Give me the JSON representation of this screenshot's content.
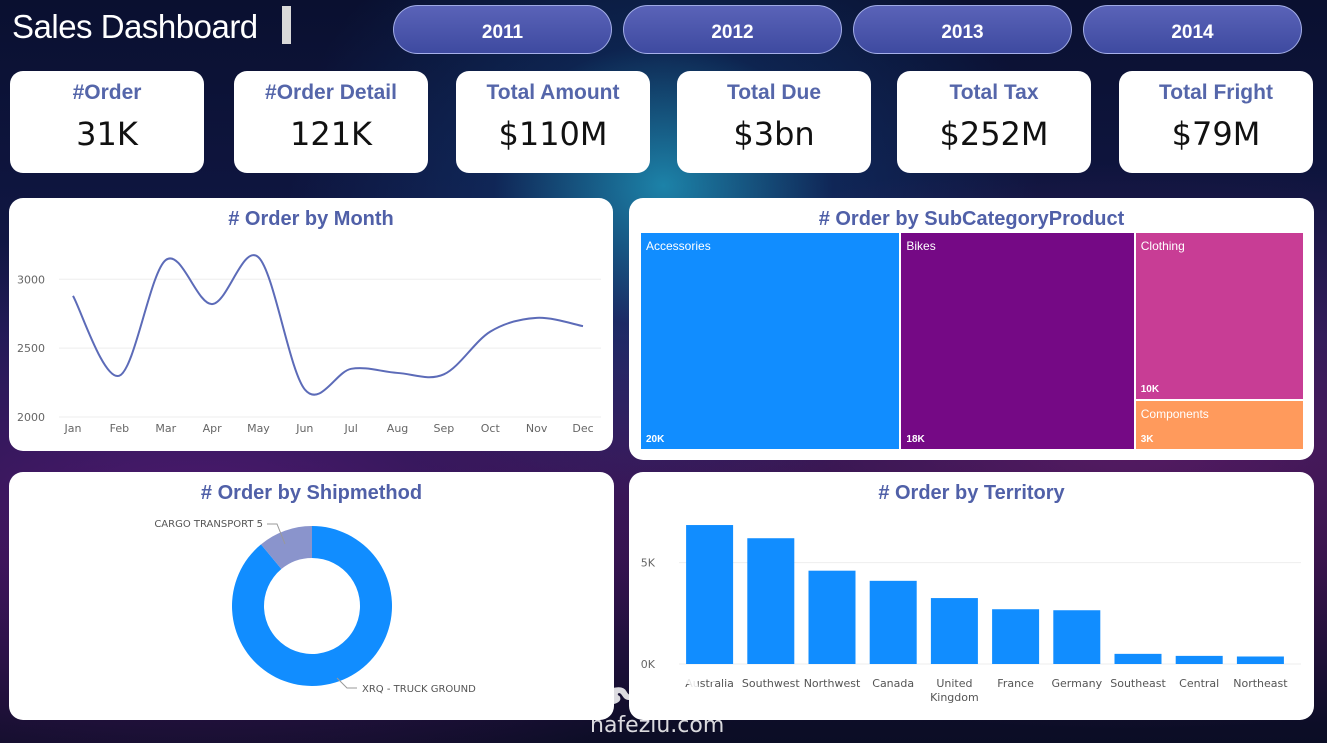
{
  "header": {
    "title": "Sales Dashboard"
  },
  "year_buttons": [
    "2011",
    "2012",
    "2013",
    "2014"
  ],
  "kpis": [
    {
      "label": "#Order",
      "value": "31K"
    },
    {
      "label": "#Order Detail",
      "value": "121K"
    },
    {
      "label": "Total Amount",
      "value": "$110M"
    },
    {
      "label": "Total Due",
      "value": "$3bn"
    },
    {
      "label": "Total Tax",
      "value": "$252M"
    },
    {
      "label": "Total Fright",
      "value": "$79M"
    }
  ],
  "colors": {
    "accent": "#118dff",
    "line": "#5c6bb8",
    "bikes": "#750985",
    "clothing": "#c83d95",
    "components": "#ff9a5c",
    "secondary": "#8a94cc"
  },
  "chart_data": [
    {
      "type": "line",
      "title": "# Order by Month",
      "categories": [
        "Jan",
        "Feb",
        "Mar",
        "Apr",
        "May",
        "Jun",
        "Jul",
        "Aug",
        "Sep",
        "Oct",
        "Nov",
        "Dec"
      ],
      "values": [
        2880,
        2300,
        3140,
        2820,
        3160,
        2200,
        2350,
        2320,
        2310,
        2620,
        2720,
        2660
      ],
      "yticks": [
        "2000",
        "2500",
        "3000"
      ],
      "ylim": [
        2000,
        3300
      ]
    },
    {
      "type": "treemap",
      "title": "# Order by SubCategoryProduct",
      "items": [
        {
          "name": "Accessories",
          "value": 20000,
          "label": "20K"
        },
        {
          "name": "Bikes",
          "value": 18000,
          "label": "18K"
        },
        {
          "name": "Clothing",
          "value": 10000,
          "label": "10K"
        },
        {
          "name": "Components",
          "value": 3000,
          "label": "3K"
        }
      ]
    },
    {
      "type": "pie",
      "title": "# Order by Shipmethod",
      "slices": [
        {
          "name": "XRQ - TRUCK GROUND",
          "value": 89
        },
        {
          "name": "CARGO TRANSPORT 5",
          "value": 11
        }
      ]
    },
    {
      "type": "bar",
      "title": "# Order by Territory",
      "categories": [
        "Australia",
        "Southwest",
        "Northwest",
        "Canada",
        "United Kingdom",
        "France",
        "Germany",
        "Southeast",
        "Central",
        "Northeast"
      ],
      "values": [
        6850,
        6200,
        4600,
        4100,
        3250,
        2700,
        2650,
        500,
        400,
        370
      ],
      "yticks": [
        "0K",
        "5K"
      ],
      "ylim": [
        0,
        7000
      ]
    }
  ],
  "watermark": {
    "arabic": "نفذلي",
    "latin": "nafezlu.com"
  }
}
